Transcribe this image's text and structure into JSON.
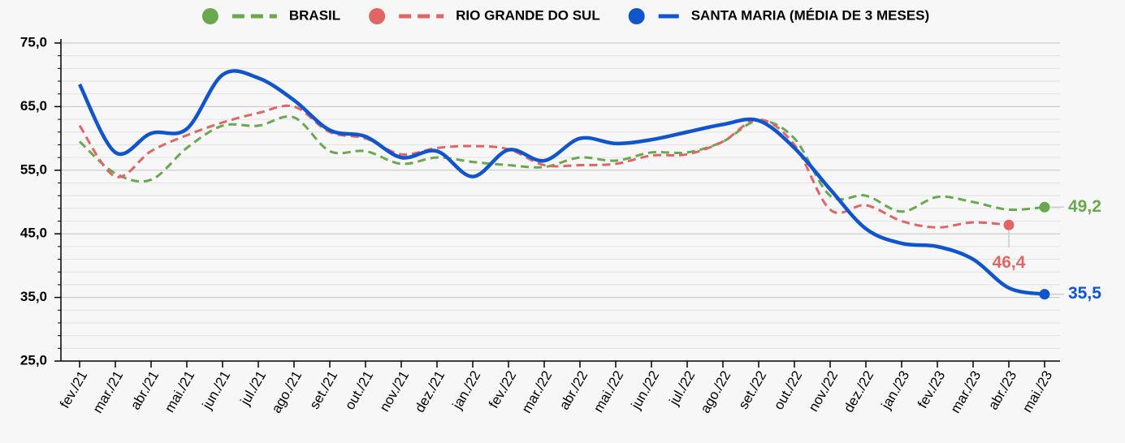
{
  "chart_data": {
    "type": "line",
    "categories": [
      "fev./21",
      "mar./21",
      "abr./21",
      "mai./21",
      "jun./21",
      "jul./21",
      "ago./21",
      "set./21",
      "out./21",
      "nov./21",
      "dez./21",
      "jan./22",
      "fev./22",
      "mar./22",
      "abr./22",
      "mai./22",
      "jun./22",
      "jul./22",
      "ago./22",
      "set./22",
      "out./22",
      "nov./22",
      "dez./22",
      "jan./23",
      "fev./23",
      "mar./23",
      "abr./23",
      "mai./23"
    ],
    "series": [
      {
        "name": "BRASIL",
        "color": "#6aa84f",
        "dashed": true,
        "values": [
          59.5,
          54.5,
          53.5,
          58.5,
          62,
          62,
          63.3,
          58,
          58,
          56,
          57,
          56.3,
          55.8,
          55.5,
          57,
          56.5,
          57.8,
          57.8,
          59.5,
          62.8,
          60,
          51,
          51,
          48.5,
          50.8,
          50,
          48.8,
          49.2
        ],
        "value_labels": [
          null,
          null,
          null,
          null,
          null,
          null,
          null,
          null,
          null,
          null,
          null,
          null,
          null,
          null,
          null,
          null,
          null,
          null,
          null,
          null,
          null,
          null,
          null,
          null,
          null,
          null,
          null,
          "49,2"
        ]
      },
      {
        "name": "RIO GRANDE DO SUL",
        "color": "#e06666",
        "dashed": true,
        "values": [
          62,
          54,
          58,
          60.5,
          62.5,
          64,
          65,
          61,
          60,
          57.5,
          58.5,
          58.8,
          58.3,
          55.8,
          55.8,
          56,
          57.3,
          57.5,
          59.5,
          63,
          59,
          48.8,
          49.5,
          47,
          46,
          46.8,
          46.4,
          null
        ],
        "value_labels": [
          null,
          null,
          null,
          null,
          null,
          null,
          null,
          null,
          null,
          null,
          null,
          null,
          null,
          null,
          null,
          null,
          null,
          null,
          null,
          null,
          null,
          null,
          null,
          null,
          null,
          null,
          "46,4",
          null
        ]
      },
      {
        "name": "SANTA MARIA (MÉDIA DE 3 MESES)",
        "color": "#1155cc",
        "dashed": false,
        "values": [
          68.5,
          57.8,
          60.8,
          61.5,
          70,
          69.5,
          66,
          61.3,
          60.3,
          57,
          58,
          54,
          58.2,
          56.5,
          60,
          59.2,
          59.8,
          61,
          62.2,
          62.8,
          58.5,
          52,
          45.8,
          43.5,
          43,
          41,
          36.5,
          35.5
        ],
        "value_labels": [
          null,
          null,
          null,
          null,
          null,
          null,
          null,
          null,
          null,
          null,
          null,
          null,
          null,
          null,
          null,
          null,
          null,
          null,
          null,
          null,
          null,
          null,
          null,
          null,
          null,
          null,
          null,
          "35,5"
        ]
      }
    ],
    "ylim": [
      25,
      75
    ],
    "yticks": [
      {
        "value": 25,
        "label": "25,0"
      },
      {
        "value": 35,
        "label": "35,0"
      },
      {
        "value": 45,
        "label": "45,0"
      },
      {
        "value": 55,
        "label": "55,0"
      },
      {
        "value": 65,
        "label": "65,0"
      },
      {
        "value": 75,
        "label": "75,0"
      }
    ],
    "grid": true
  }
}
